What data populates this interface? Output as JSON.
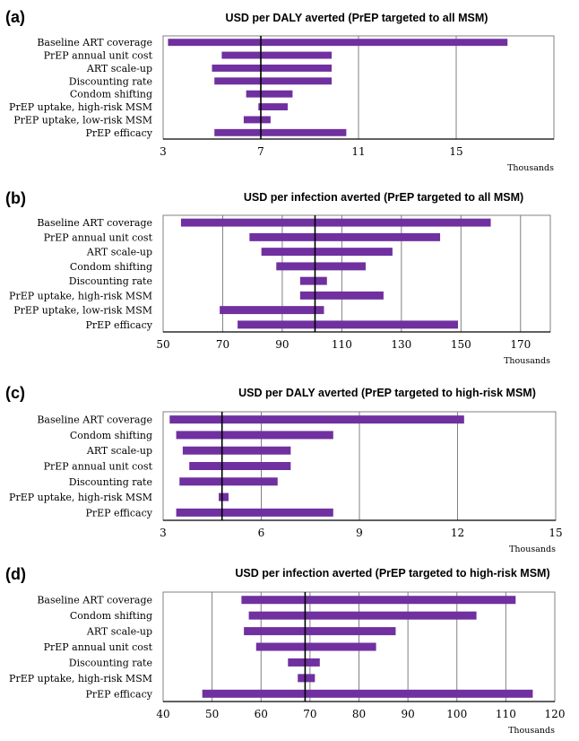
{
  "chart_data": [
    {
      "panel": "(a)",
      "type": "bar",
      "orientation": "horizontal-range",
      "title": "USD per DALY averted (PrEP targeted to all MSM)",
      "unit_label": "Thousands",
      "xlim": [
        3,
        19
      ],
      "ticks": [
        3,
        7,
        11,
        15
      ],
      "baseline": 7,
      "bar_color": "#7030a0",
      "categories": [
        "Baseline ART coverage",
        "PrEP annual unit cost",
        "ART scale-up",
        "Discounting rate",
        "Condom shifting",
        "PrEP uptake, high-risk MSM",
        "PrEP uptake, low-risk MSM",
        "PrEP efficacy"
      ],
      "ranges": [
        [
          3.2,
          17.1
        ],
        [
          5.4,
          9.9
        ],
        [
          5.0,
          9.9
        ],
        [
          5.1,
          9.9
        ],
        [
          6.4,
          8.3
        ],
        [
          6.9,
          8.1
        ],
        [
          6.3,
          7.4
        ],
        [
          5.1,
          10.5
        ]
      ]
    },
    {
      "panel": "(b)",
      "type": "bar",
      "orientation": "horizontal-range",
      "title": "USD per infection averted (PrEP targeted to all MSM)",
      "unit_label": "Thousands",
      "xlim": [
        50,
        180
      ],
      "ticks": [
        50,
        70,
        90,
        110,
        130,
        150,
        170
      ],
      "baseline": 101,
      "bar_color": "#7030a0",
      "categories": [
        "Baseline ART coverage",
        "PrEP annual unit cost",
        "ART scale-up",
        "Condom shifting",
        "Discounting rate",
        "PrEP uptake, high-risk MSM",
        "PrEP uptake, low-risk MSM",
        "PrEP efficacy"
      ],
      "ranges": [
        [
          56,
          160
        ],
        [
          79,
          143
        ],
        [
          83,
          127
        ],
        [
          88,
          118
        ],
        [
          96,
          105
        ],
        [
          96,
          124
        ],
        [
          69,
          104
        ],
        [
          75,
          149
        ]
      ]
    },
    {
      "panel": "(c)",
      "type": "bar",
      "orientation": "horizontal-range",
      "title": "USD per DALY averted (PrEP targeted to high-risk MSM)",
      "unit_label": "Thousands",
      "xlim": [
        3,
        15
      ],
      "ticks": [
        3,
        6,
        9,
        12,
        15
      ],
      "baseline": 4.8,
      "bar_color": "#7030a0",
      "categories": [
        "Baseline ART coverage",
        "Condom shifting",
        "ART scale-up",
        "PrEP annual unit cost",
        "Discounting rate",
        "PrEP uptake, high-risk MSM",
        "PrEP efficacy"
      ],
      "ranges": [
        [
          3.2,
          12.2
        ],
        [
          3.4,
          8.2
        ],
        [
          3.6,
          6.9
        ],
        [
          3.8,
          6.9
        ],
        [
          3.5,
          6.5
        ],
        [
          4.7,
          5.0
        ],
        [
          3.4,
          8.2
        ]
      ]
    },
    {
      "panel": "(d)",
      "type": "bar",
      "orientation": "horizontal-range",
      "title": "USD per infection averted (PrEP targeted to high-risk MSM)",
      "unit_label": "Thousands",
      "xlim": [
        40,
        120
      ],
      "ticks": [
        40,
        50,
        60,
        70,
        80,
        90,
        100,
        110,
        120
      ],
      "baseline": 69,
      "bar_color": "#7030a0",
      "categories": [
        "Baseline ART coverage",
        "Condom shifting",
        "ART scale-up",
        "PrEP annual unit cost",
        "Discounting rate",
        "PrEP uptake, high-risk MSM",
        "PrEP efficacy"
      ],
      "ranges": [
        [
          56,
          112
        ],
        [
          57.5,
          104
        ],
        [
          56.5,
          87.5
        ],
        [
          59,
          83.5
        ],
        [
          65.5,
          72
        ],
        [
          67.5,
          71
        ],
        [
          48,
          115.5
        ]
      ]
    }
  ]
}
